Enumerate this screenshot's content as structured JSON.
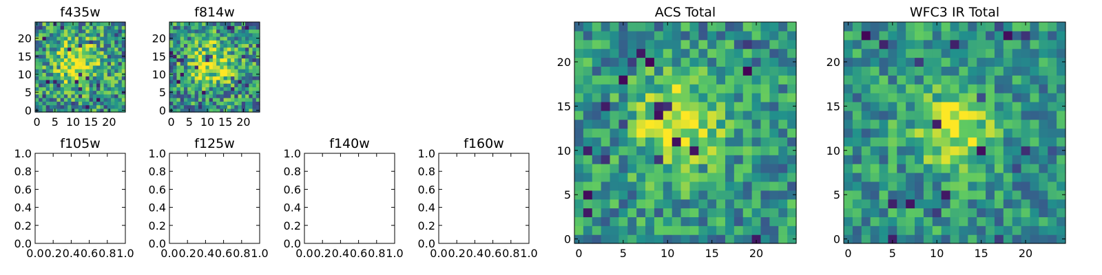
{
  "chart_data": [
    {
      "type": "heatmap",
      "title": "f435w",
      "size": 25,
      "xticks": [
        0,
        5,
        10,
        15,
        20
      ],
      "yticks": [
        0,
        5,
        10,
        15,
        20
      ],
      "xlim": [
        -0.5,
        24.5
      ],
      "ylim": [
        -0.5,
        24.5
      ],
      "noise": 0.42,
      "peak": [
        11,
        13.5
      ],
      "sigma": 4.2,
      "seed": 11
    },
    {
      "type": "heatmap",
      "title": "f814w",
      "size": 25,
      "xticks": [
        0,
        5,
        10,
        15,
        20
      ],
      "yticks": [
        0,
        5,
        10,
        15,
        20
      ],
      "xlim": [
        -0.5,
        24.5
      ],
      "ylim": [
        -0.5,
        24.5
      ],
      "noise": 0.42,
      "peak": [
        11,
        13
      ],
      "sigma": 4.2,
      "seed": 23
    },
    {
      "type": "empty",
      "title": "f105w",
      "xticks": [
        "0.0",
        "0.2",
        "0.4",
        "0.6",
        "0.8",
        "1.0"
      ],
      "yticks": [
        "0.0",
        "0.2",
        "0.4",
        "0.6",
        "0.8",
        "1.0"
      ],
      "xlim": [
        0,
        1
      ],
      "ylim": [
        0,
        1
      ]
    },
    {
      "type": "empty",
      "title": "f125w",
      "xticks": [
        "0.0",
        "0.2",
        "0.4",
        "0.6",
        "0.8",
        "1.0"
      ],
      "yticks": [
        "0.0",
        "0.2",
        "0.4",
        "0.6",
        "0.8",
        "1.0"
      ],
      "xlim": [
        0,
        1
      ],
      "ylim": [
        0,
        1
      ]
    },
    {
      "type": "empty",
      "title": "f140w",
      "xticks": [
        "0.0",
        "0.2",
        "0.4",
        "0.6",
        "0.8",
        "1.0"
      ],
      "yticks": [
        "0.0",
        "0.2",
        "0.4",
        "0.6",
        "0.8",
        "1.0"
      ],
      "xlim": [
        0,
        1
      ],
      "ylim": [
        0,
        1
      ]
    },
    {
      "type": "empty",
      "title": "f160w",
      "xticks": [
        "0.0",
        "0.2",
        "0.4",
        "0.6",
        "0.8",
        "1.0"
      ],
      "yticks": [
        "0.0",
        "0.2",
        "0.4",
        "0.6",
        "0.8",
        "1.0"
      ],
      "xlim": [
        0,
        1
      ],
      "ylim": [
        0,
        1
      ]
    },
    {
      "type": "heatmap",
      "title": "ACS Total",
      "size": 25,
      "xticks": [
        0,
        5,
        10,
        15,
        20
      ],
      "yticks": [
        0,
        5,
        10,
        15,
        20
      ],
      "xlim": [
        -0.5,
        24.5
      ],
      "ylim": [
        -0.5,
        24.5
      ],
      "noise": 0.32,
      "peak": [
        11,
        13
      ],
      "sigma": 3.6,
      "seed": 37
    },
    {
      "type": "heatmap",
      "title": "WFC3 IR Total",
      "size": 25,
      "xticks": [
        0,
        5,
        10,
        15,
        20
      ],
      "yticks": [
        0,
        5,
        10,
        15,
        20
      ],
      "xlim": [
        -0.5,
        24.5
      ],
      "ylim": [
        -0.5,
        24.5
      ],
      "noise": 0.3,
      "peak": [
        12,
        12.5
      ],
      "sigma": 3.2,
      "seed": 53
    }
  ],
  "colormap": [
    "#440154",
    "#3b528b",
    "#21918c",
    "#5ec962",
    "#fde725"
  ]
}
